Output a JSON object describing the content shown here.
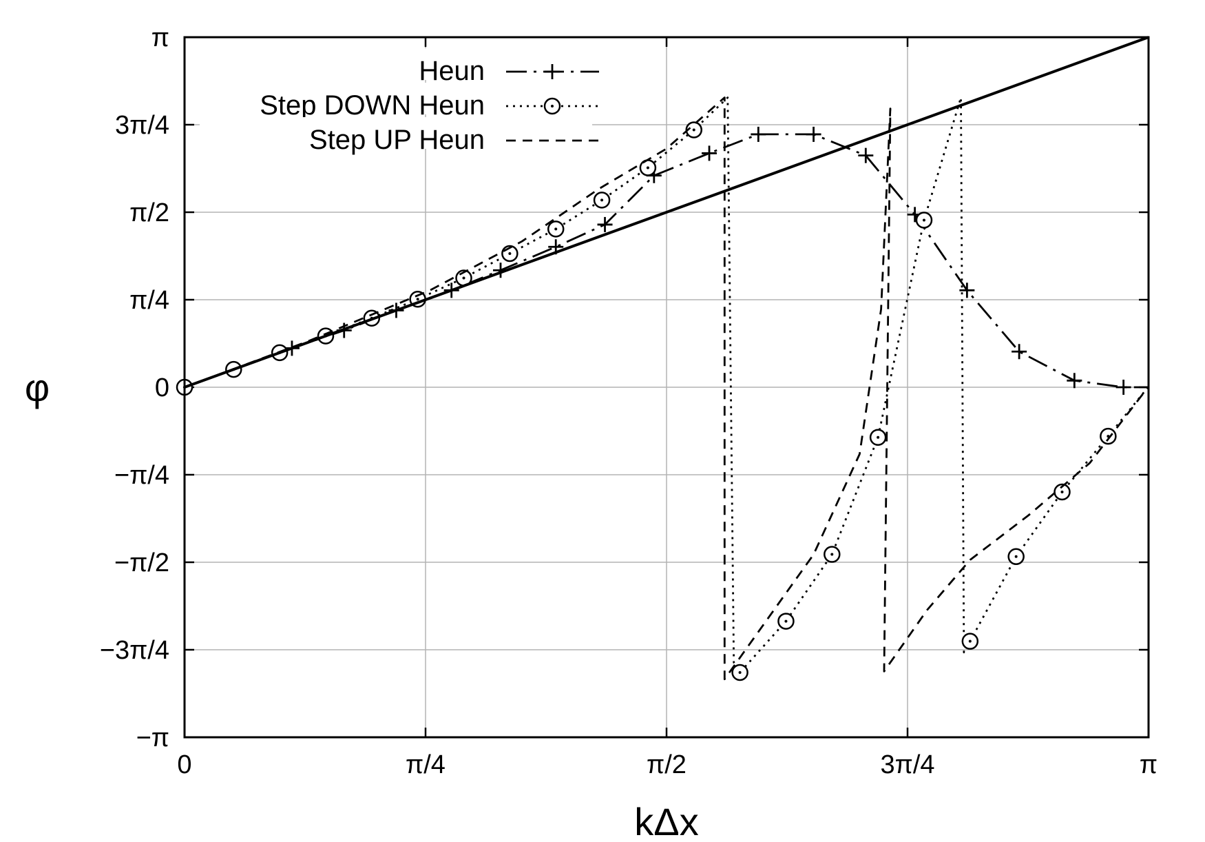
{
  "chart_data": {
    "type": "line",
    "xlabel": "kΔx",
    "ylabel": "φ",
    "xlim": [
      0,
      3.14159
    ],
    "ylim": [
      -3.14159,
      3.14159
    ],
    "x_ticks": [
      {
        "value": 0,
        "label": "0"
      },
      {
        "value": 0.7854,
        "label": "π/4"
      },
      {
        "value": 1.5708,
        "label": "π/2"
      },
      {
        "value": 2.3562,
        "label": "3π/4"
      },
      {
        "value": 3.14159,
        "label": "π"
      }
    ],
    "y_ticks": [
      {
        "value": 3.14159,
        "label": "π"
      },
      {
        "value": 2.3562,
        "label": "3π/4"
      },
      {
        "value": 1.5708,
        "label": "π/2"
      },
      {
        "value": 0.7854,
        "label": "π/4"
      },
      {
        "value": 0,
        "label": "0"
      },
      {
        "value": -0.7854,
        "label": "−π/4"
      },
      {
        "value": -1.5708,
        "label": "−π/2"
      },
      {
        "value": -2.3562,
        "label": "−3π/4"
      },
      {
        "value": -3.14159,
        "label": "−π"
      }
    ],
    "grid": true,
    "legend_position": "top-left",
    "series": [
      {
        "name": "Heun",
        "style": "dash-dot",
        "marker": "plus",
        "points": [
          [
            0,
            0
          ],
          [
            0.16,
            0.16
          ],
          [
            0.35,
            0.35
          ],
          [
            0.52,
            0.51
          ],
          [
            0.69,
            0.69
          ],
          [
            0.87,
            0.87
          ],
          [
            1.03,
            1.05
          ],
          [
            1.21,
            1.26
          ],
          [
            1.37,
            1.46
          ],
          [
            1.53,
            1.9
          ],
          [
            1.71,
            2.1
          ],
          [
            1.87,
            2.27
          ],
          [
            2.05,
            2.27
          ],
          [
            2.22,
            2.08
          ],
          [
            2.38,
            1.55
          ],
          [
            2.55,
            0.87
          ],
          [
            2.72,
            0.32
          ],
          [
            2.9,
            0.06
          ],
          [
            3.06,
            0.0
          ],
          [
            3.14,
            0.0
          ]
        ],
        "markers": [
          [
            0,
            0
          ],
          [
            0.16,
            0.16
          ],
          [
            0.35,
            0.35
          ],
          [
            0.52,
            0.51
          ],
          [
            0.69,
            0.69
          ],
          [
            0.87,
            0.87
          ],
          [
            1.03,
            1.05
          ],
          [
            1.21,
            1.26
          ],
          [
            1.37,
            1.46
          ],
          [
            1.53,
            1.9
          ],
          [
            1.71,
            2.1
          ],
          [
            1.87,
            2.27
          ],
          [
            2.05,
            2.27
          ],
          [
            2.22,
            2.08
          ],
          [
            2.38,
            1.55
          ],
          [
            2.55,
            0.87
          ],
          [
            2.72,
            0.32
          ],
          [
            2.9,
            0.06
          ],
          [
            3.06,
            0.0
          ]
        ]
      },
      {
        "name": "Step DOWN Heun",
        "style": "dotted",
        "marker": "circle",
        "points": [
          [
            0,
            0
          ],
          [
            0.16,
            0.16
          ],
          [
            0.31,
            0.31
          ],
          [
            0.46,
            0.46
          ],
          [
            0.61,
            0.62
          ],
          [
            0.76,
            0.79
          ],
          [
            0.91,
            0.98
          ],
          [
            1.06,
            1.2
          ],
          [
            1.21,
            1.42
          ],
          [
            1.36,
            1.68
          ],
          [
            1.51,
            1.97
          ],
          [
            1.66,
            2.31
          ],
          [
            1.77,
            2.6
          ],
          [
            1.79,
            -2.47
          ],
          [
            1.81,
            -2.56
          ],
          [
            1.96,
            -2.1
          ],
          [
            2.11,
            -1.5
          ],
          [
            2.26,
            -0.45
          ],
          [
            2.41,
            1.5
          ],
          [
            2.53,
            2.6
          ],
          [
            2.54,
            -2.38
          ],
          [
            2.56,
            -2.28
          ],
          [
            2.71,
            -1.52
          ],
          [
            2.86,
            -0.94
          ],
          [
            3.01,
            -0.44
          ],
          [
            3.14,
            0
          ]
        ],
        "markers": [
          [
            0,
            0
          ],
          [
            0.16,
            0.16
          ],
          [
            0.31,
            0.31
          ],
          [
            0.46,
            0.46
          ],
          [
            0.61,
            0.62
          ],
          [
            0.76,
            0.79
          ],
          [
            0.91,
            0.98
          ],
          [
            1.06,
            1.2
          ],
          [
            1.21,
            1.42
          ],
          [
            1.36,
            1.68
          ],
          [
            1.51,
            1.97
          ],
          [
            1.66,
            2.31
          ],
          [
            1.81,
            -2.56
          ],
          [
            1.96,
            -2.1
          ],
          [
            2.11,
            -1.5
          ],
          [
            2.26,
            -0.45
          ],
          [
            2.41,
            1.5
          ],
          [
            2.56,
            -2.28
          ],
          [
            2.71,
            -1.52
          ],
          [
            2.86,
            -0.94
          ],
          [
            3.01,
            -0.44
          ]
        ]
      },
      {
        "name": "Step UP Heun",
        "style": "dashed",
        "marker": "none",
        "points": [
          [
            0,
            0
          ],
          [
            0.4,
            0.41
          ],
          [
            0.8,
            0.87
          ],
          [
            1.1,
            1.31
          ],
          [
            1.35,
            1.78
          ],
          [
            1.57,
            2.14
          ],
          [
            1.76,
            2.6
          ],
          [
            1.76,
            -2.62
          ],
          [
            2.05,
            -1.5
          ],
          [
            2.2,
            -0.6
          ],
          [
            2.27,
            0.7
          ],
          [
            2.3,
            2.5
          ],
          [
            2.28,
            -2.55
          ],
          [
            2.42,
            -2.0
          ],
          [
            2.56,
            -1.55
          ],
          [
            2.75,
            -1.15
          ],
          [
            2.95,
            -0.68
          ],
          [
            3.14,
            0
          ]
        ],
        "markers": []
      },
      {
        "name": "",
        "style": "solid",
        "marker": "none",
        "points": [
          [
            0,
            0
          ],
          [
            3.14159,
            3.14159
          ]
        ],
        "markers": []
      }
    ]
  }
}
